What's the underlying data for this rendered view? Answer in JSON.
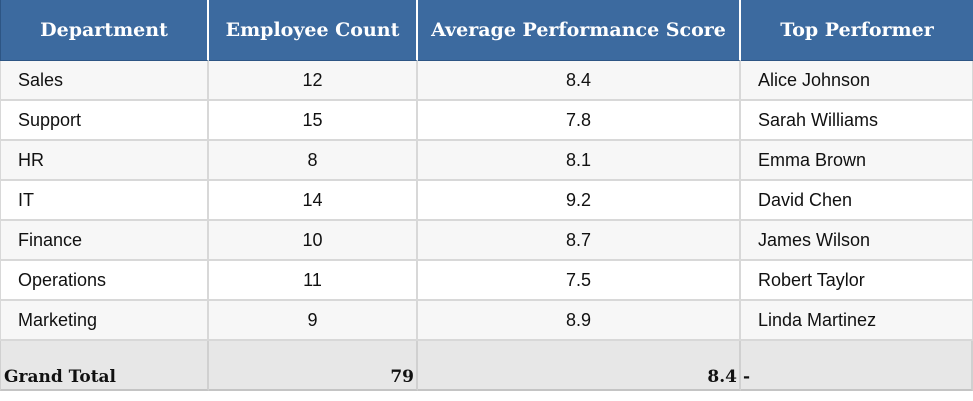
{
  "table": {
    "headers": {
      "department": "Department",
      "employee_count": "Employee Count",
      "avg_score": "Average Performance Score",
      "top_performer": "Top Performer"
    },
    "rows": [
      {
        "department": "Sales",
        "employee_count": "12",
        "avg_score": "8.4",
        "top_performer": "Alice Johnson"
      },
      {
        "department": "Support",
        "employee_count": "15",
        "avg_score": "7.8",
        "top_performer": "Sarah Williams"
      },
      {
        "department": "HR",
        "employee_count": "8",
        "avg_score": "8.1",
        "top_performer": "Emma Brown"
      },
      {
        "department": "IT",
        "employee_count": "14",
        "avg_score": "9.2",
        "top_performer": "David Chen"
      },
      {
        "department": "Finance",
        "employee_count": "10",
        "avg_score": "8.7",
        "top_performer": "James Wilson"
      },
      {
        "department": "Operations",
        "employee_count": "11",
        "avg_score": "7.5",
        "top_performer": "Robert Taylor"
      },
      {
        "department": "Marketing",
        "employee_count": "9",
        "avg_score": "8.9",
        "top_performer": "Linda Martinez"
      }
    ],
    "total": {
      "label": "Grand Total",
      "employee_count": "79",
      "avg_score": "8.4",
      "top_performer": "-"
    },
    "colors": {
      "header_bg": "#3c6a9f",
      "header_text": "#ffffff",
      "row_alt_bg": "#f7f7f7",
      "total_bg": "#e7e7e7"
    }
  }
}
